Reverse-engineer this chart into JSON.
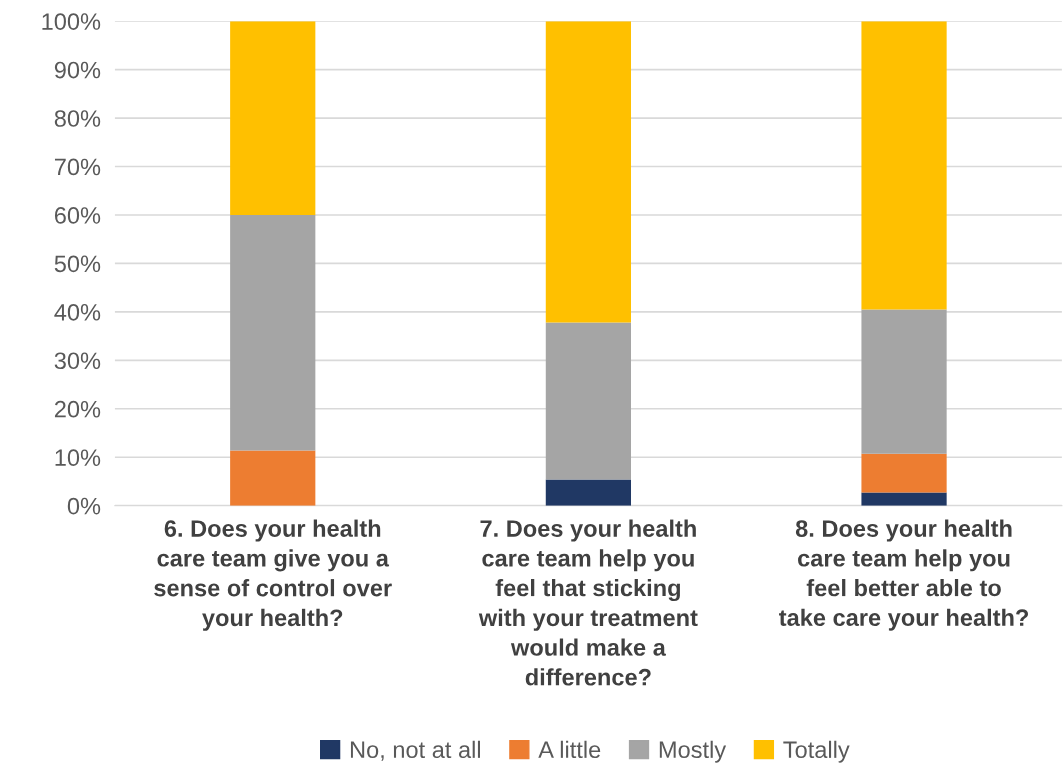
{
  "chart_data": {
    "type": "bar",
    "stacked": true,
    "categories": [
      "6. Does your health care team give you a sense of control over your health?",
      "7. Does your health care team help you feel that sticking with your treatment would make a difference?",
      "8. Does your health care team help you feel better able to take care your health?"
    ],
    "series": [
      {
        "name": "No, not at all",
        "color": "#203864",
        "values": [
          0,
          5.4,
          2.7
        ]
      },
      {
        "name": "A little",
        "color": "#ed7d31",
        "values": [
          11.4,
          0,
          8.0
        ]
      },
      {
        "name": "Mostly",
        "color": "#a5a5a5",
        "values": [
          48.6,
          32.4,
          29.8
        ]
      },
      {
        "name": "Totally",
        "color": "#ffc000",
        "values": [
          40.0,
          62.2,
          59.5
        ]
      }
    ],
    "ylim": [
      0,
      100
    ],
    "yticks": [
      {
        "value": 0,
        "label": "0%"
      },
      {
        "value": 10,
        "label": "10%"
      },
      {
        "value": 20,
        "label": "20%"
      },
      {
        "value": 30,
        "label": "30%"
      },
      {
        "value": 40,
        "label": "40%"
      },
      {
        "value": 50,
        "label": "50%"
      },
      {
        "value": 60,
        "label": "60%"
      },
      {
        "value": 70,
        "label": "70%"
      },
      {
        "value": 80,
        "label": "80%"
      },
      {
        "value": 90,
        "label": "90%"
      },
      {
        "value": 100,
        "label": "100%"
      }
    ],
    "grid": "y",
    "legend": "bottom"
  }
}
